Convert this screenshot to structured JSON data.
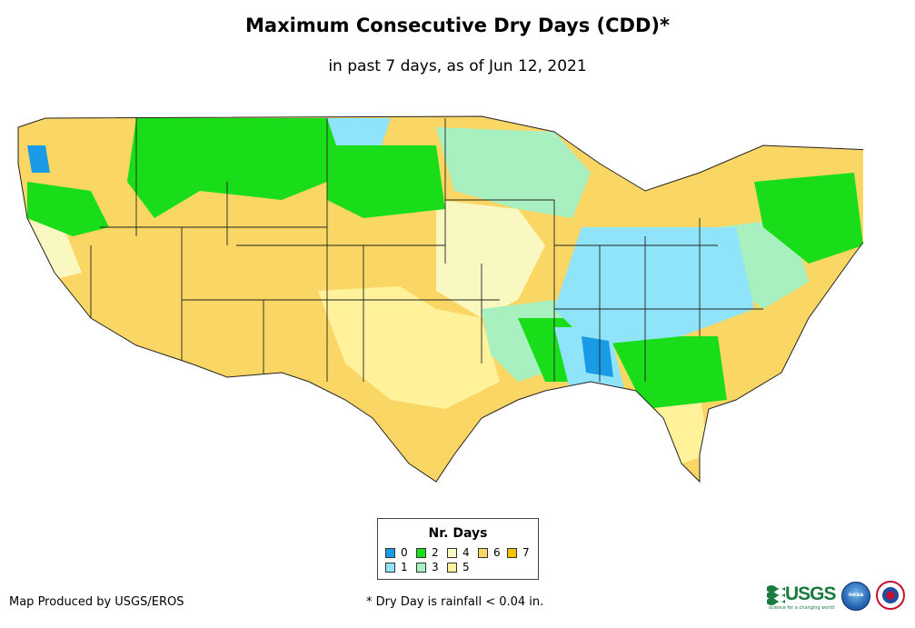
{
  "title": "Maximum Consecutive Dry Days (CDD)*",
  "subtitle": "in past 7 days, as of Jun 12, 2021",
  "legend": {
    "title": "Nr. Days",
    "items": [
      {
        "label": "0",
        "color": "#1a9be6"
      },
      {
        "label": "1",
        "color": "#90e4fa"
      },
      {
        "label": "2",
        "color": "#18dd18"
      },
      {
        "label": "3",
        "color": "#a8f0c0"
      },
      {
        "label": "4",
        "color": "#f8f8c0"
      },
      {
        "label": "5",
        "color": "#fff29a"
      },
      {
        "label": "6",
        "color": "#fad764"
      },
      {
        "label": "7",
        "color": "#f7c100"
      }
    ]
  },
  "credit": "Map Produced by USGS/EROS",
  "footnote": "* Dry Day is rainfall < 0.04 in.",
  "logos": {
    "usgs": "USGS",
    "usgs_tagline": "science for a changing world",
    "noaa": "noaa",
    "nws": "National Weather Service"
  }
}
